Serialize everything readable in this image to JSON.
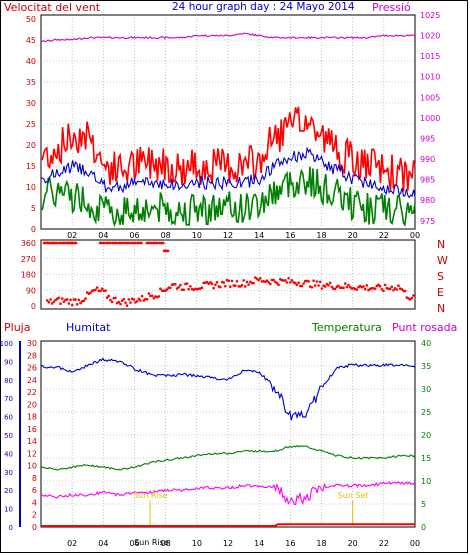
{
  "header": {
    "wind_label": "Velocitat del vent",
    "title": "24 hour graph day : 24 Mayo 2014",
    "pressure_label": "Pressió"
  },
  "lower_header": {
    "rain": "Pluja",
    "humidity": "Humitat",
    "temperature": "Temperatura",
    "dew": "Punt rosada"
  },
  "sun": {
    "rise_label": "Sun Rise",
    "set_label": "Sun Set",
    "rise_hour": 7.0,
    "set_hour": 20.0
  },
  "compass": [
    "N",
    "W",
    "S",
    "E",
    "N"
  ],
  "colors": {
    "wind_gust": "#ff0000",
    "wind_avg": "#0000cc",
    "wind_min": "#008000",
    "pressure": "#cc00cc",
    "direction": "#ff0000",
    "humidity": "#0000cc",
    "temperature": "#008000",
    "dew": "#ff00ff",
    "rain": "#ff0000",
    "grid": "#999999",
    "sun_label": "#e0c000"
  },
  "chart_data": [
    {
      "type": "line",
      "title": "24 hour graph day : 24 Mayo 2014",
      "x_ticks": [
        "02",
        "04",
        "06",
        "08",
        "10",
        "12",
        "14",
        "16",
        "18",
        "20",
        "22",
        "00"
      ],
      "y_left_ticks": [
        0,
        5,
        10,
        15,
        20,
        25,
        30,
        35,
        40,
        45,
        50
      ],
      "y_right_ticks": [
        975,
        980,
        985,
        990,
        995,
        1000,
        1005,
        1010,
        1015,
        1020,
        1025
      ],
      "ylim_left": [
        0,
        50
      ],
      "ylim_right": [
        973,
        1025
      ],
      "grid": true,
      "series": [
        {
          "name": "Velocitat del vent",
          "x": [
            0,
            1,
            2,
            3,
            4,
            5,
            6,
            7,
            8,
            9,
            10,
            11,
            12,
            13,
            14,
            15,
            16,
            17,
            18,
            19,
            20,
            21,
            22,
            23,
            24
          ],
          "values": [
            17,
            19,
            22,
            23,
            15,
            14,
            15,
            16,
            16,
            14,
            15,
            15,
            15,
            15,
            16,
            22,
            24,
            26,
            22,
            19,
            16,
            15,
            14,
            13,
            12
          ]
        },
        {
          "x": [
            0,
            1,
            2,
            3,
            4,
            5,
            6,
            7,
            8,
            9,
            10,
            11,
            12,
            13,
            14,
            15,
            16,
            17,
            18,
            19,
            20,
            21,
            22,
            23,
            24
          ],
          "values": [
            12,
            13,
            15,
            14,
            10,
            10,
            11,
            11,
            11,
            10,
            11,
            11,
            11,
            11,
            12,
            15,
            17,
            18,
            16,
            14,
            12,
            11,
            10,
            9,
            9
          ]
        },
        {
          "x": [
            0,
            1,
            2,
            3,
            4,
            5,
            6,
            7,
            8,
            9,
            10,
            11,
            12,
            13,
            14,
            15,
            16,
            17,
            18,
            19,
            20,
            21,
            22,
            23,
            24
          ],
          "values": [
            8,
            9,
            8,
            7,
            4,
            4,
            5,
            5,
            5,
            4,
            5,
            5,
            5,
            5,
            6,
            9,
            11,
            12,
            10,
            8,
            6,
            5,
            5,
            4,
            4
          ]
        },
        {
          "name": "Pressió",
          "x": [
            0,
            1,
            2,
            3,
            4,
            5,
            6,
            7,
            8,
            9,
            10,
            11,
            12,
            13,
            14,
            15,
            16,
            17,
            18,
            19,
            20,
            21,
            22,
            23,
            24
          ],
          "values": [
            1018.5,
            1019.0,
            1019.0,
            1019.5,
            1019.5,
            1019.5,
            1019.5,
            1019.5,
            1019.5,
            1019.5,
            1020.0,
            1020.0,
            1020.0,
            1020.5,
            1020.0,
            1019.5,
            1019.5,
            1019.5,
            1019.5,
            1019.5,
            1019.5,
            1019.5,
            1020.0,
            1020.0,
            1020.0
          ]
        }
      ]
    },
    {
      "type": "scatter",
      "y_ticks": [
        0,
        90,
        180,
        270,
        360
      ],
      "ylim": [
        0,
        360
      ],
      "x_ticks": [
        "02",
        "04",
        "06",
        "08",
        "10",
        "12",
        "14",
        "16",
        "18",
        "20",
        "22",
        "00"
      ],
      "grid": true,
      "series": [
        {
          "x": [
            0.2,
            0.5,
            0.8,
            1.2,
            1.5,
            1.8,
            2.0
          ],
          "values": [
            360,
            360,
            360,
            360,
            360,
            360,
            360
          ]
        },
        {
          "x": [
            3.8,
            4.2,
            4.6,
            5.0,
            5.4,
            5.8,
            6.2
          ],
          "values": [
            360,
            360,
            360,
            360,
            360,
            360,
            360
          ]
        },
        {
          "x": [
            6.8,
            7.2,
            7.6
          ],
          "values": [
            360,
            360,
            360
          ]
        },
        {
          "x": [
            7.9
          ],
          "values": [
            315
          ]
        },
        {
          "x": [
            0.5,
            1.0,
            1.5,
            2.0,
            2.5,
            3.0,
            3.5,
            4.0,
            4.5,
            5.0,
            5.5,
            6.0,
            6.5,
            7.0,
            7.5,
            8.0,
            8.5,
            9.0,
            10,
            11,
            12,
            13,
            14,
            15,
            16,
            17,
            18,
            19,
            20,
            21,
            22,
            23,
            23.5,
            24
          ],
          "values": [
            20,
            30,
            30,
            25,
            30,
            60,
            90,
            80,
            40,
            30,
            20,
            35,
            40,
            60,
            70,
            100,
            120,
            110,
            110,
            120,
            130,
            130,
            150,
            140,
            140,
            130,
            120,
            115,
            110,
            105,
            100,
            110,
            60,
            40
          ]
        }
      ]
    },
    {
      "type": "line",
      "y_left_ticks": [
        0,
        10,
        20,
        30,
        40,
        50,
        60,
        70,
        80,
        90,
        100
      ],
      "y_left2_ticks": [
        0,
        2,
        4,
        6,
        8,
        10,
        12,
        14,
        16,
        18,
        20,
        22,
        24,
        26,
        28,
        30
      ],
      "y_right_ticks": [
        0,
        5,
        10,
        15,
        20,
        25,
        30,
        35,
        40
      ],
      "ylim_humidity": [
        0,
        100
      ],
      "ylim_temp": [
        0,
        40
      ],
      "ylim_rain": [
        0,
        30
      ],
      "x_ticks": [
        "02",
        "04",
        "06",
        "08",
        "10",
        "12",
        "14",
        "16",
        "18",
        "20",
        "22",
        "00"
      ],
      "grid": true,
      "series": [
        {
          "name": "Humitat",
          "x": [
            0,
            1,
            2,
            3,
            4,
            5,
            6,
            7,
            8,
            9,
            10,
            11,
            12,
            13,
            14,
            15,
            16,
            17,
            18,
            19,
            20,
            21,
            22,
            23,
            24
          ],
          "values": [
            87,
            87,
            84,
            88,
            91,
            90,
            86,
            83,
            82,
            83,
            82,
            81,
            80,
            85,
            84,
            76,
            60,
            62,
            75,
            87,
            88,
            88,
            88,
            88,
            87
          ]
        },
        {
          "name": "Temperatura",
          "x": [
            0,
            1,
            2,
            3,
            4,
            5,
            6,
            7,
            8,
            9,
            10,
            11,
            12,
            13,
            14,
            15,
            16,
            17,
            18,
            19,
            20,
            21,
            22,
            23,
            24
          ],
          "values": [
            13,
            12.5,
            13,
            13.5,
            13,
            12.5,
            13,
            14,
            14.5,
            15,
            15.5,
            16,
            16,
            16.5,
            16.5,
            16.5,
            17.5,
            17.5,
            16.5,
            15.5,
            15,
            15,
            15,
            15.5,
            15.5
          ]
        },
        {
          "name": "Punt rosada",
          "x": [
            0,
            1,
            2,
            3,
            4,
            5,
            6,
            7,
            8,
            9,
            10,
            11,
            12,
            13,
            14,
            15,
            16,
            17,
            18,
            19,
            20,
            21,
            22,
            23,
            24
          ],
          "values": [
            7,
            6.5,
            7,
            7,
            7.5,
            7,
            7.5,
            7.5,
            8,
            8,
            8.5,
            8.5,
            8.5,
            9,
            9,
            8.5,
            6,
            6.5,
            8.5,
            9,
            9,
            9,
            9.5,
            9.5,
            9.5
          ]
        },
        {
          "name": "Pluja",
          "x": [
            0,
            6,
            12,
            15,
            15.2,
            24
          ],
          "values": [
            0,
            0,
            0,
            0,
            0.3,
            0.3
          ]
        }
      ]
    }
  ]
}
